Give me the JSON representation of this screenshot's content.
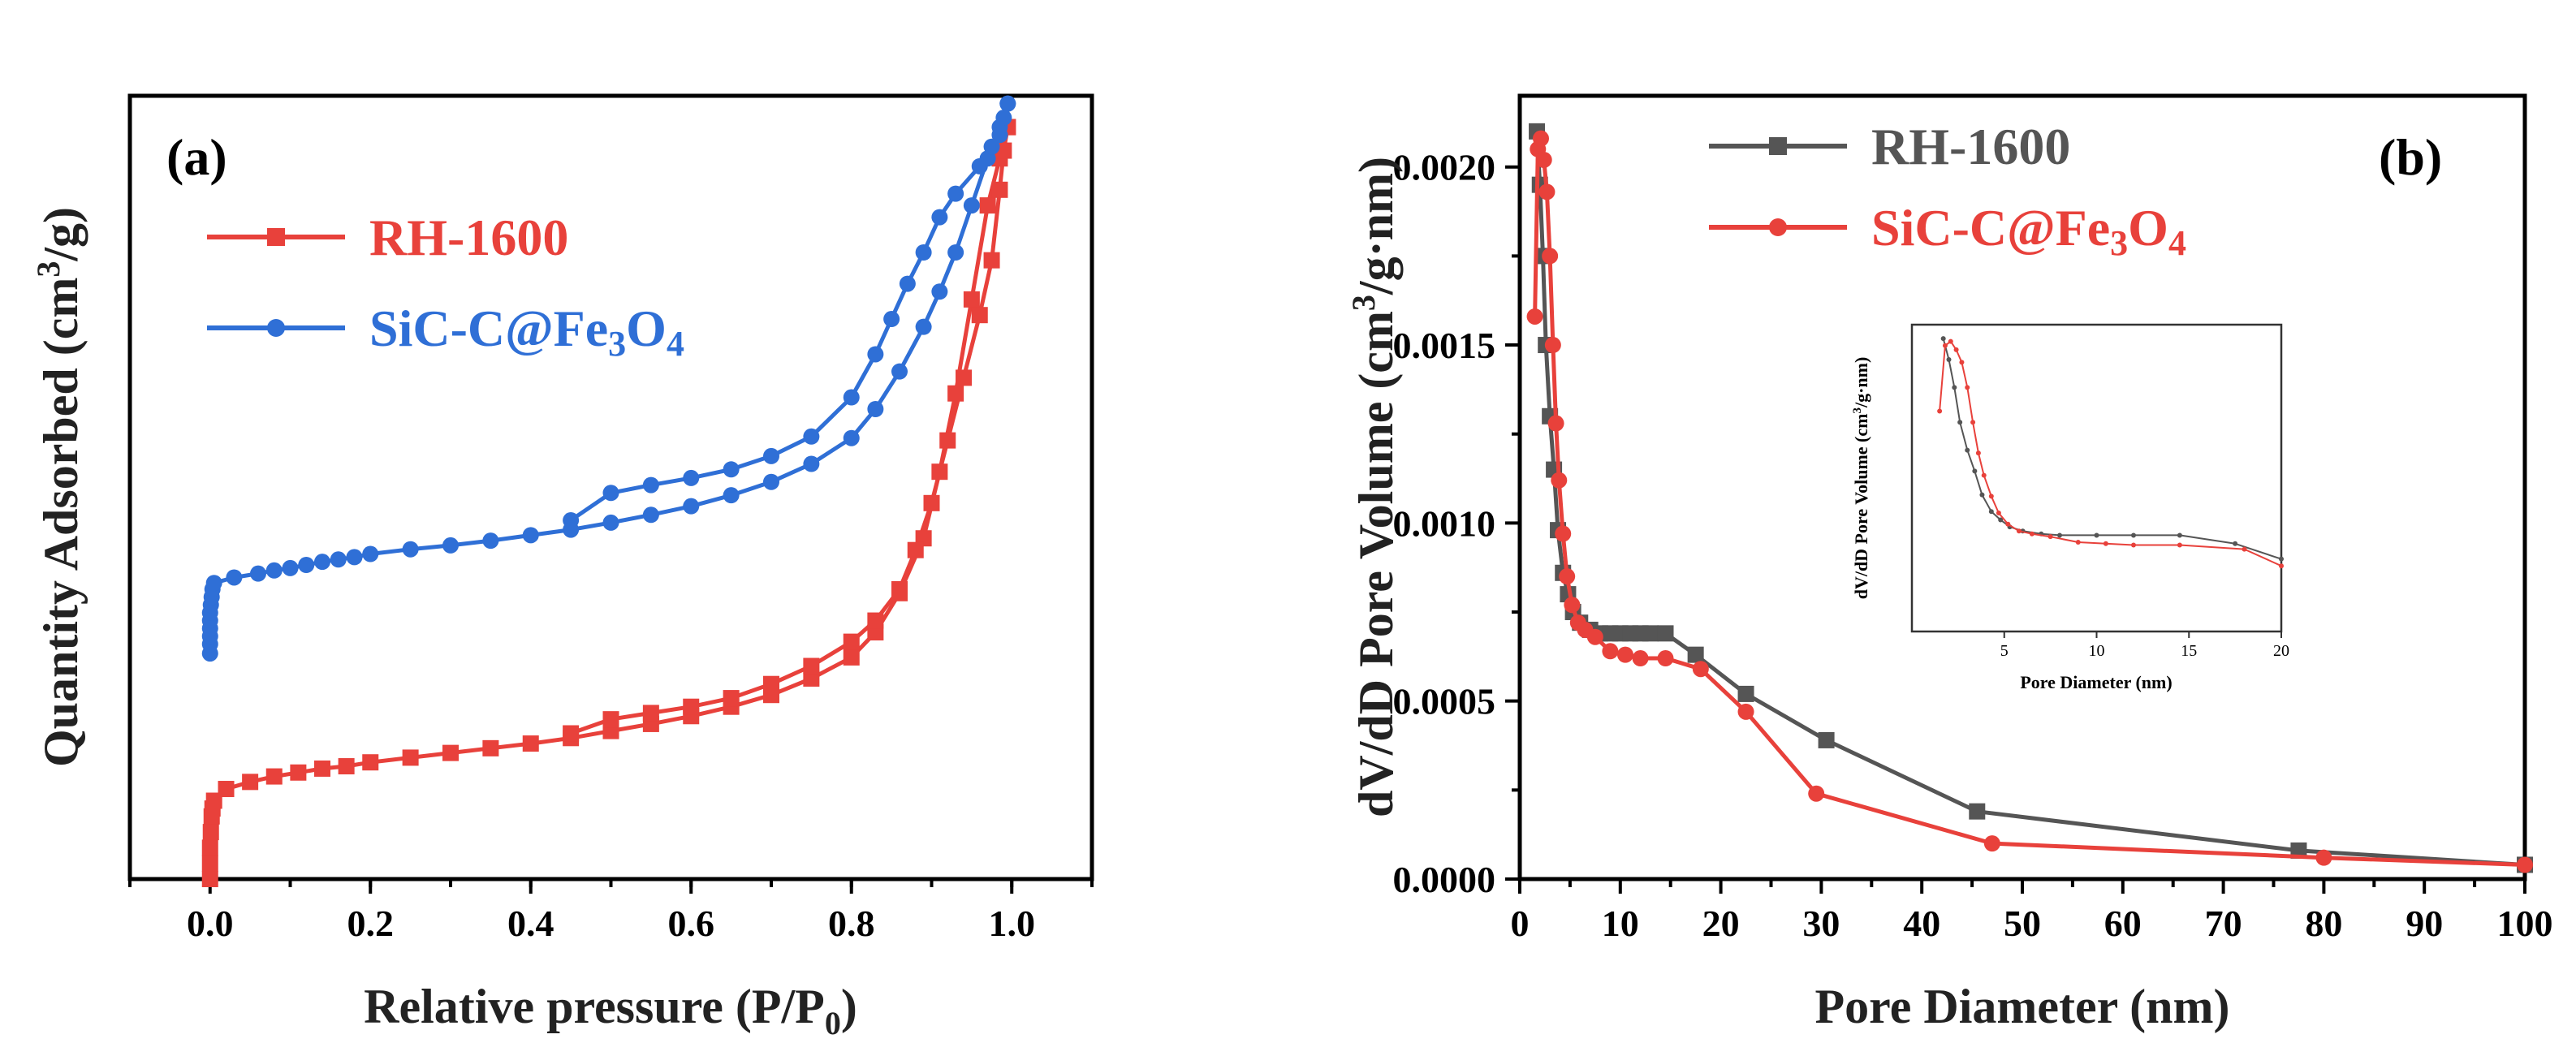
{
  "colors": {
    "red": "#e8413b",
    "blue": "#2f6fd6",
    "gray": "#555555",
    "axis": "#000000"
  },
  "chart_data": [
    {
      "panel": "(a)",
      "type": "line",
      "xlabel_main": "Relative pressure (P/P",
      "xlabel_sub": "0",
      "xlabel_end": ")",
      "ylabel_main": "Quantity Adsorbed (cm",
      "ylabel_sup": "3",
      "ylabel_end": "/g)",
      "xlim": [
        -0.1,
        1.1
      ],
      "ylim": [
        0,
        100
      ],
      "xticks": [
        "0.0",
        "0.2",
        "0.4",
        "0.6",
        "0.8",
        "1.0"
      ],
      "yticks_shown": false,
      "grid": false,
      "legend_position": "top-left",
      "series": [
        {
          "name": "RH-1600",
          "name_parts": [
            "RH-1600"
          ],
          "color": "#e8413b",
          "marker": "square",
          "adsorption": [
            [
              0.0,
              0
            ],
            [
              0.0,
              2
            ],
            [
              0.0,
              4
            ],
            [
              0.001,
              6
            ],
            [
              0.002,
              8
            ],
            [
              0.003,
              9
            ],
            [
              0.005,
              10
            ],
            [
              0.02,
              11.5
            ],
            [
              0.05,
              12.4
            ],
            [
              0.08,
              13.1
            ],
            [
              0.11,
              13.6
            ],
            [
              0.14,
              14.1
            ],
            [
              0.17,
              14.4
            ],
            [
              0.2,
              14.9
            ],
            [
              0.25,
              15.5
            ],
            [
              0.3,
              16.1
            ],
            [
              0.35,
              16.7
            ],
            [
              0.4,
              17.3
            ],
            [
              0.45,
              18.0
            ],
            [
              0.5,
              18.9
            ],
            [
              0.55,
              19.8
            ],
            [
              0.6,
              20.8
            ],
            [
              0.65,
              22.0
            ],
            [
              0.7,
              23.5
            ],
            [
              0.75,
              25.6
            ],
            [
              0.8,
              28.3
            ],
            [
              0.83,
              31.5
            ],
            [
              0.86,
              36.5
            ],
            [
              0.89,
              43.5
            ],
            [
              0.91,
              52
            ],
            [
              0.93,
              62
            ],
            [
              0.95,
              74
            ],
            [
              0.97,
              86
            ],
            [
              0.985,
              92
            ],
            [
              0.995,
              96
            ]
          ],
          "desorption": [
            [
              0.995,
              96
            ],
            [
              0.99,
              93
            ],
            [
              0.985,
              88
            ],
            [
              0.975,
              79
            ],
            [
              0.96,
              72
            ],
            [
              0.94,
              64
            ],
            [
              0.92,
              56
            ],
            [
              0.9,
              48
            ],
            [
              0.88,
              42
            ],
            [
              0.86,
              37
            ],
            [
              0.83,
              33
            ],
            [
              0.8,
              30.3
            ],
            [
              0.75,
              27.2
            ],
            [
              0.7,
              24.9
            ],
            [
              0.65,
              23.1
            ],
            [
              0.6,
              22.0
            ],
            [
              0.55,
              21.2
            ],
            [
              0.5,
              20.4
            ],
            [
              0.45,
              18.6
            ]
          ]
        },
        {
          "name": "SiC-C@Fe3O4",
          "name_parts": [
            "SiC-C@Fe",
            "3",
            "O",
            "4"
          ],
          "color": "#2f6fd6",
          "marker": "circle",
          "adsorption": [
            [
              0.0,
              28.8
            ],
            [
              0.0,
              30
            ],
            [
              0.0,
              31
            ],
            [
              0.0,
              32
            ],
            [
              0.0,
              33
            ],
            [
              0.0,
              34
            ],
            [
              0.001,
              35
            ],
            [
              0.002,
              36
            ],
            [
              0.003,
              37
            ],
            [
              0.005,
              37.8
            ],
            [
              0.03,
              38.5
            ],
            [
              0.06,
              39
            ],
            [
              0.08,
              39.4
            ],
            [
              0.1,
              39.7
            ],
            [
              0.12,
              40.1
            ],
            [
              0.14,
              40.5
            ],
            [
              0.16,
              40.8
            ],
            [
              0.18,
              41.1
            ],
            [
              0.2,
              41.5
            ],
            [
              0.25,
              42.1
            ],
            [
              0.3,
              42.6
            ],
            [
              0.35,
              43.2
            ],
            [
              0.4,
              43.9
            ],
            [
              0.45,
              44.6
            ],
            [
              0.5,
              45.5
            ],
            [
              0.55,
              46.5
            ],
            [
              0.6,
              47.6
            ],
            [
              0.65,
              49.0
            ],
            [
              0.7,
              50.7
            ],
            [
              0.75,
              53.0
            ],
            [
              0.8,
              56.3
            ],
            [
              0.83,
              60.0
            ],
            [
              0.86,
              64.8
            ],
            [
              0.89,
              70.5
            ],
            [
              0.91,
              75
            ],
            [
              0.93,
              80
            ],
            [
              0.95,
              86
            ],
            [
              0.97,
              92
            ],
            [
              0.985,
              96
            ],
            [
              0.995,
              99
            ]
          ],
          "desorption": [
            [
              0.995,
              99
            ],
            [
              0.99,
              97.2
            ],
            [
              0.985,
              95
            ],
            [
              0.975,
              93.5
            ],
            [
              0.96,
              91
            ],
            [
              0.93,
              87.5
            ],
            [
              0.91,
              84.5
            ],
            [
              0.89,
              80
            ],
            [
              0.87,
              76
            ],
            [
              0.85,
              71.5
            ],
            [
              0.83,
              67
            ],
            [
              0.8,
              61.5
            ],
            [
              0.75,
              56.5
            ],
            [
              0.7,
              54
            ],
            [
              0.65,
              52.3
            ],
            [
              0.6,
              51.2
            ],
            [
              0.55,
              50.3
            ],
            [
              0.5,
              49.3
            ],
            [
              0.45,
              45.8
            ]
          ]
        }
      ]
    },
    {
      "panel": "(b)",
      "type": "line",
      "xlabel": "Pore Diameter (nm)",
      "ylabel_main": "dV/dD Pore Volume (cm",
      "ylabel_sup": "3",
      "ylabel_end": "/g·nm)",
      "xlim": [
        0,
        100
      ],
      "ylim": [
        0,
        0.0022
      ],
      "xticks": [
        "0",
        "10",
        "20",
        "30",
        "40",
        "50",
        "60",
        "70",
        "80",
        "90",
        "100"
      ],
      "yticks": [
        "0.0000",
        "0.0005",
        "0.0010",
        "0.0015",
        "0.0020"
      ],
      "grid": false,
      "legend_position": "top-left",
      "series": [
        {
          "name": "RH-1600",
          "name_parts": [
            "RH-1600"
          ],
          "color": "#555555",
          "marker": "square",
          "points": [
            [
              1.7,
              0.0021
            ],
            [
              2.0,
              0.00195
            ],
            [
              2.3,
              0.00175
            ],
            [
              2.6,
              0.0015
            ],
            [
              3.0,
              0.0013
            ],
            [
              3.4,
              0.00115
            ],
            [
              3.8,
              0.00098
            ],
            [
              4.3,
              0.00086
            ],
            [
              4.8,
              0.0008
            ],
            [
              5.3,
              0.00075
            ],
            [
              6.0,
              0.00072
            ],
            [
              7.0,
              0.0007
            ],
            [
              8.0,
              0.00069
            ],
            [
              9.0,
              0.00069
            ],
            [
              10.0,
              0.00069
            ],
            [
              11.0,
              0.00069
            ],
            [
              12.0,
              0.00069
            ],
            [
              13.0,
              0.00069
            ],
            [
              14.5,
              0.00069
            ],
            [
              17.5,
              0.00063
            ],
            [
              22.5,
              0.00052
            ],
            [
              30.5,
              0.00039
            ],
            [
              45.5,
              0.00019
            ],
            [
              77.5,
              8e-05
            ],
            [
              100,
              4e-05
            ]
          ]
        },
        {
          "name": "SiC-C@Fe3O4",
          "name_parts": [
            "SiC-C@Fe",
            "3",
            "O",
            "4"
          ],
          "color": "#e8413b",
          "marker": "circle",
          "points": [
            [
              1.5,
              0.00158
            ],
            [
              1.8,
              0.00205
            ],
            [
              2.1,
              0.00208
            ],
            [
              2.4,
              0.00202
            ],
            [
              2.7,
              0.00193
            ],
            [
              3.0,
              0.00175
            ],
            [
              3.3,
              0.0015
            ],
            [
              3.6,
              0.00128
            ],
            [
              3.9,
              0.00112
            ],
            [
              4.3,
              0.00097
            ],
            [
              4.7,
              0.00085
            ],
            [
              5.2,
              0.00077
            ],
            [
              5.8,
              0.00072
            ],
            [
              6.5,
              0.0007
            ],
            [
              7.5,
              0.00068
            ],
            [
              9.0,
              0.00064
            ],
            [
              10.5,
              0.00063
            ],
            [
              12.0,
              0.00062
            ],
            [
              14.5,
              0.00062
            ],
            [
              18,
              0.00059
            ],
            [
              22.5,
              0.00047
            ],
            [
              29.5,
              0.00024
            ],
            [
              47,
              0.0001
            ],
            [
              80,
              6e-05
            ],
            [
              100,
              4e-05
            ]
          ]
        }
      ],
      "inset": {
        "type": "line",
        "xlabel": "Pore Diameter (nm)",
        "ylabel_main": "dV/dD Pore Volume (cm",
        "ylabel_sup": "3",
        "ylabel_end": "/g·nm)",
        "xlim": [
          0,
          20
        ],
        "ylim": [
          0,
          0.0022
        ],
        "xticks": [
          "5",
          "10",
          "15",
          "20"
        ],
        "series": [
          {
            "name": "RH-1600",
            "color": "#555555",
            "points": [
              [
                1.7,
                0.0021
              ],
              [
                2.0,
                0.00195
              ],
              [
                2.3,
                0.00175
              ],
              [
                2.6,
                0.0015
              ],
              [
                3.0,
                0.0013
              ],
              [
                3.4,
                0.00115
              ],
              [
                3.8,
                0.00098
              ],
              [
                4.3,
                0.00086
              ],
              [
                4.8,
                0.0008
              ],
              [
                5.3,
                0.00075
              ],
              [
                6.0,
                0.00072
              ],
              [
                7.0,
                0.0007
              ],
              [
                8.0,
                0.00069
              ],
              [
                10.0,
                0.00069
              ],
              [
                12.0,
                0.00069
              ],
              [
                14.5,
                0.00069
              ],
              [
                17.5,
                0.00063
              ],
              [
                20,
                0.00052
              ]
            ]
          },
          {
            "name": "SiC-C@Fe3O4",
            "color": "#e8413b",
            "points": [
              [
                1.5,
                0.00158
              ],
              [
                1.8,
                0.00205
              ],
              [
                2.1,
                0.00208
              ],
              [
                2.4,
                0.00202
              ],
              [
                2.7,
                0.00193
              ],
              [
                3.0,
                0.00175
              ],
              [
                3.3,
                0.0015
              ],
              [
                3.6,
                0.00128
              ],
              [
                3.9,
                0.00112
              ],
              [
                4.3,
                0.00097
              ],
              [
                4.7,
                0.00085
              ],
              [
                5.2,
                0.00077
              ],
              [
                5.8,
                0.00072
              ],
              [
                6.5,
                0.0007
              ],
              [
                7.5,
                0.00068
              ],
              [
                9.0,
                0.00064
              ],
              [
                10.5,
                0.00063
              ],
              [
                12.0,
                0.00062
              ],
              [
                14.5,
                0.00062
              ],
              [
                18,
                0.00059
              ],
              [
                20,
                0.00047
              ]
            ]
          }
        ]
      }
    }
  ]
}
